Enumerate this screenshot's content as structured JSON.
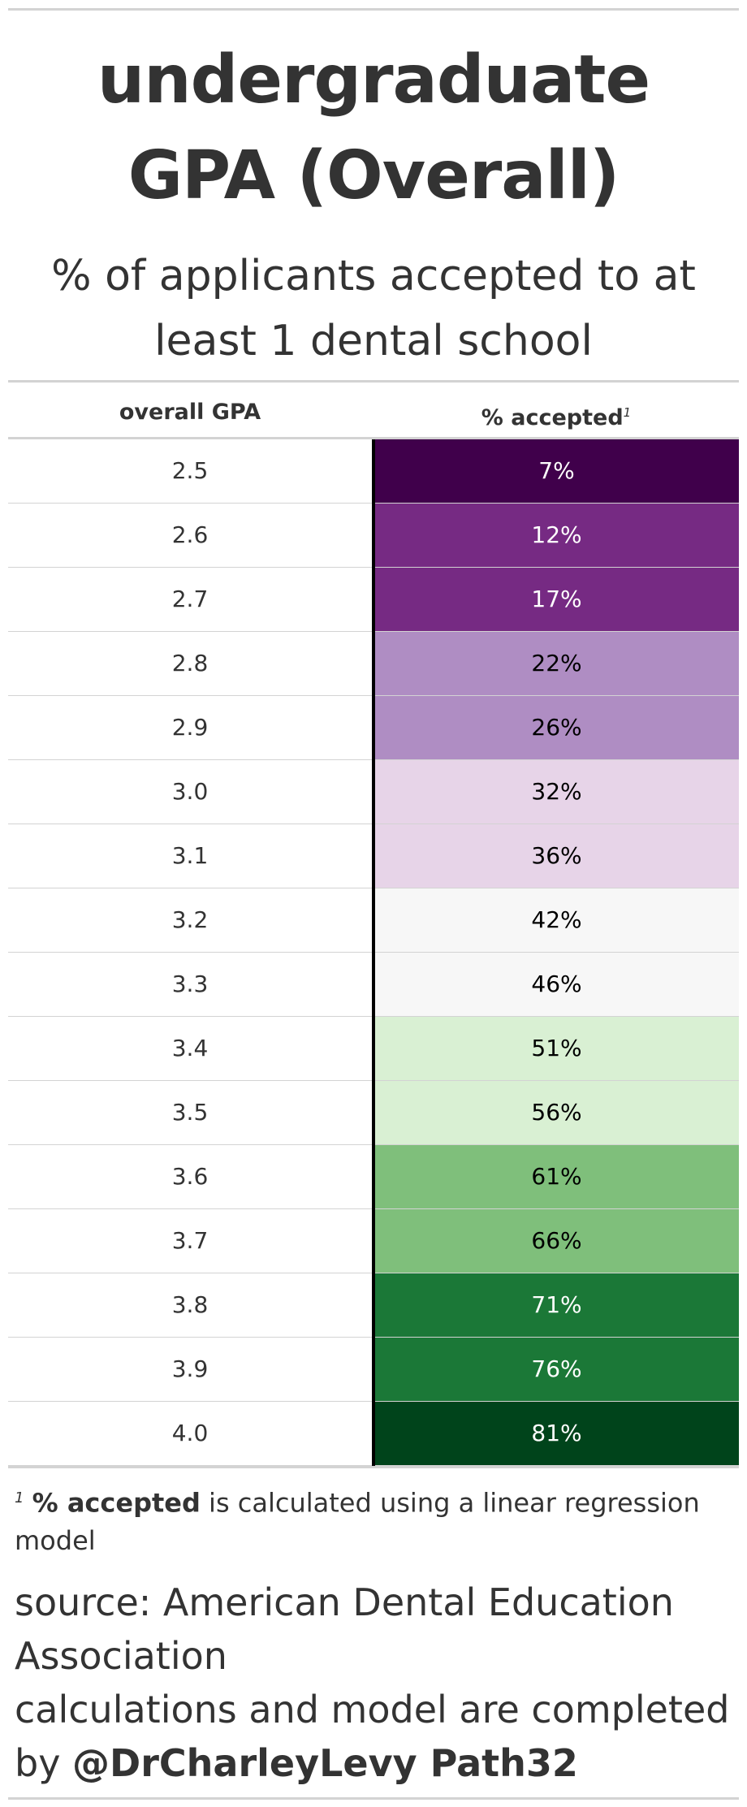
{
  "title_line1": "undergraduate",
  "title_line2": "GPA (Overall)",
  "subtitle_line1": "% of applicants accepted to at",
  "subtitle_line2": "least 1 dental school",
  "columns": {
    "gpa": "overall GPA",
    "accepted": "% accepted",
    "accepted_mark": "1"
  },
  "chart_data": {
    "type": "table",
    "columns": [
      "overall GPA",
      "% accepted"
    ],
    "rows": [
      {
        "gpa": "2.5",
        "accepted": "7%",
        "value": 7
      },
      {
        "gpa": "2.6",
        "accepted": "12%",
        "value": 12
      },
      {
        "gpa": "2.7",
        "accepted": "17%",
        "value": 17
      },
      {
        "gpa": "2.8",
        "accepted": "22%",
        "value": 22
      },
      {
        "gpa": "2.9",
        "accepted": "26%",
        "value": 26
      },
      {
        "gpa": "3.0",
        "accepted": "32%",
        "value": 32
      },
      {
        "gpa": "3.1",
        "accepted": "36%",
        "value": 36
      },
      {
        "gpa": "3.2",
        "accepted": "42%",
        "value": 42
      },
      {
        "gpa": "3.3",
        "accepted": "46%",
        "value": 46
      },
      {
        "gpa": "3.4",
        "accepted": "51%",
        "value": 51
      },
      {
        "gpa": "3.5",
        "accepted": "56%",
        "value": 56
      },
      {
        "gpa": "3.6",
        "accepted": "61%",
        "value": 61
      },
      {
        "gpa": "3.7",
        "accepted": "66%",
        "value": 66
      },
      {
        "gpa": "3.8",
        "accepted": "71%",
        "value": 71
      },
      {
        "gpa": "3.9",
        "accepted": "76%",
        "value": 76
      },
      {
        "gpa": "4.0",
        "accepted": "81%",
        "value": 81
      }
    ],
    "color_scale": [
      "#40004b",
      "#762a83",
      "#762a83",
      "#af8dc3",
      "#af8dc3",
      "#e7d4e8",
      "#e7d4e8",
      "#f7f7f7",
      "#f7f7f7",
      "#d9f0d3",
      "#d9f0d3",
      "#7fbf7b",
      "#7fbf7b",
      "#1b7837",
      "#1b7837",
      "#00441b"
    ]
  },
  "footnote": {
    "mark": "1",
    "bold": "% accepted",
    "text": " is calculated using a linear regression model"
  },
  "source": {
    "line1": "source: American Dental Education Association",
    "line2": "calculations and model are completed by ",
    "bold": "@DrCharleyLevy Path32"
  }
}
